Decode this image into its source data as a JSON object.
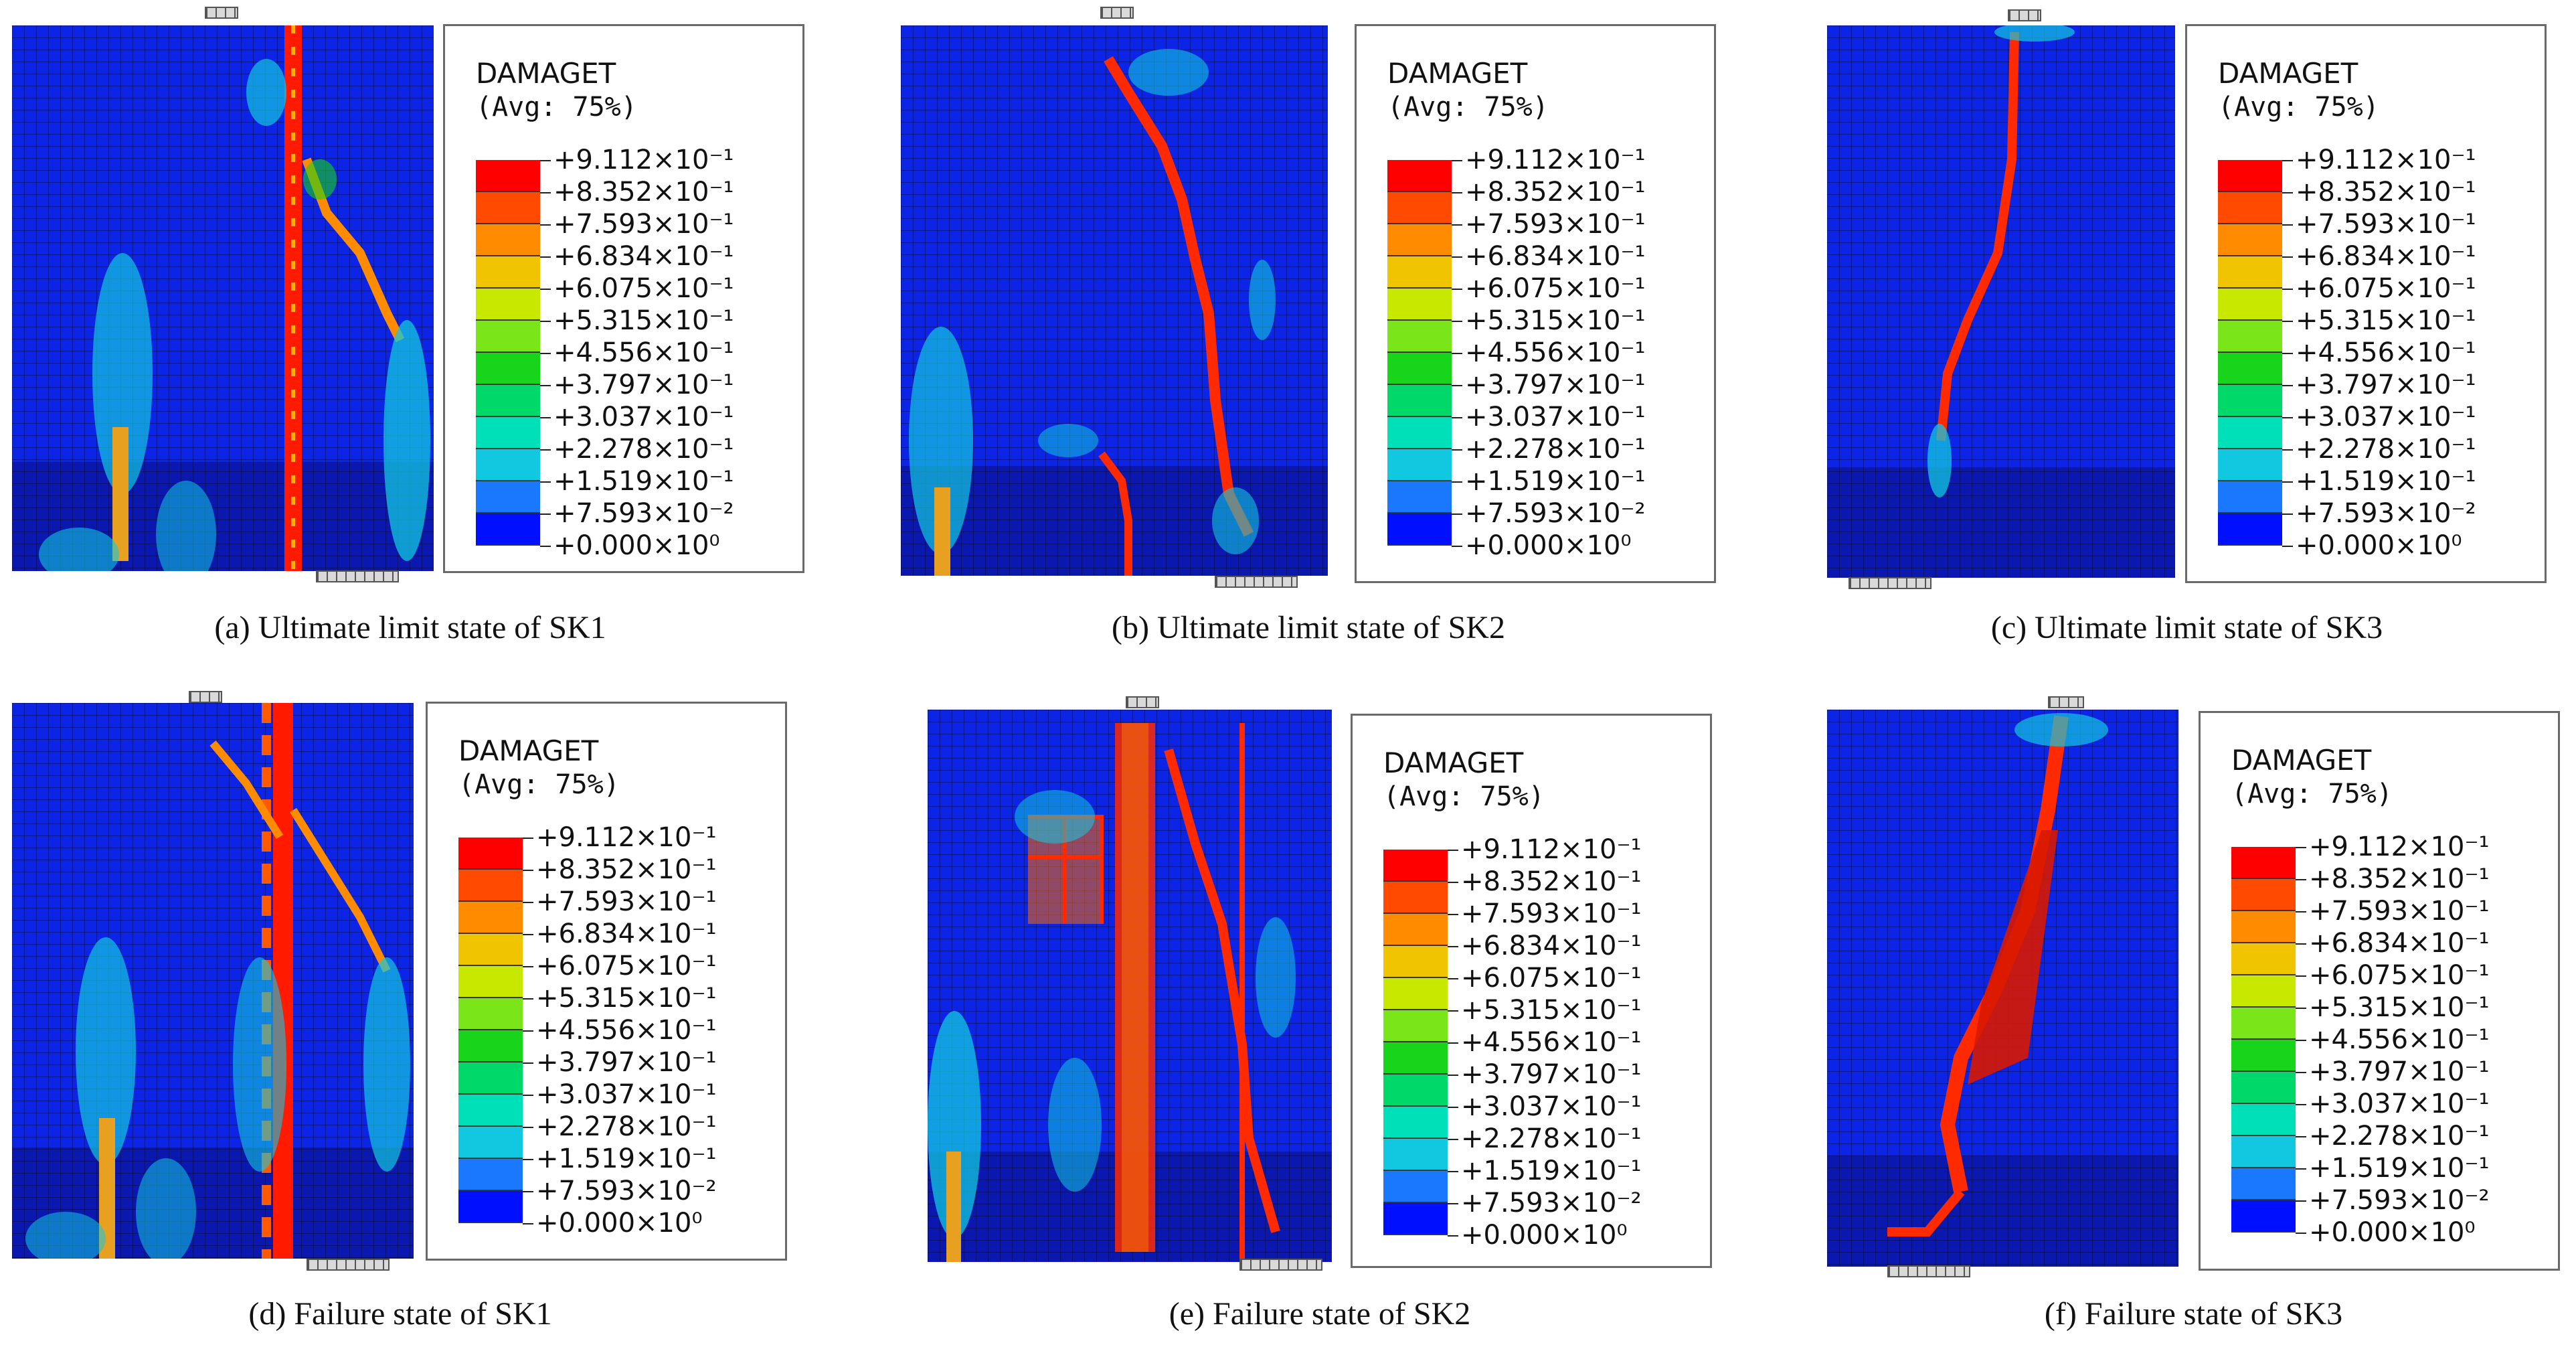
{
  "legend": {
    "title": "DAMAGET",
    "subtitle": "(Avg: 75%)",
    "colors": [
      "#ff0000",
      "#ff4a00",
      "#ff8c00",
      "#f0c400",
      "#c8e800",
      "#7ae61a",
      "#18d41a",
      "#00d86a",
      "#00e0b8",
      "#12c8e0",
      "#1a78ff",
      "#0010ff"
    ],
    "labels": [
      "+9.112×10⁻¹",
      "+8.352×10⁻¹",
      "+7.593×10⁻¹",
      "+6.834×10⁻¹",
      "+6.075×10⁻¹",
      "+5.315×10⁻¹",
      "+4.556×10⁻¹",
      "+3.797×10⁻¹",
      "+3.037×10⁻¹",
      "+2.278×10⁻¹",
      "+1.519×10⁻¹",
      "+7.593×10⁻²",
      "+0.000×10⁰"
    ]
  },
  "panels": [
    {
      "caption": "(a) Ultimate limit state of SK1"
    },
    {
      "caption": "(b) Ultimate limit state of SK2"
    },
    {
      "caption": "(c) Ultimate limit state of SK3"
    },
    {
      "caption": "(d) Failure state of SK1"
    },
    {
      "caption": "(e) Failure state of SK2"
    },
    {
      "caption": "(f) Failure state of SK3"
    }
  ]
}
